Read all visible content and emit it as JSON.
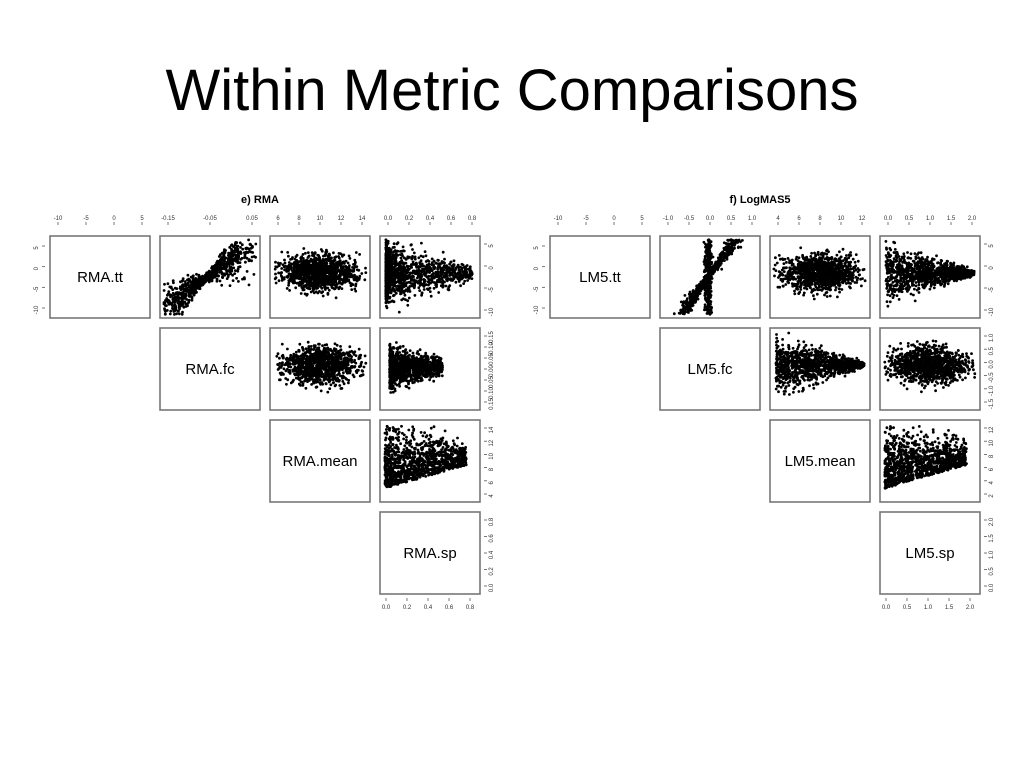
{
  "slide": {
    "title": "Within Metric Comparisons"
  },
  "chart_data": [
    {
      "type": "scatter",
      "title": "e) RMA",
      "variables": [
        "RMA.tt",
        "RMA.fc",
        "RMA.mean",
        "RMA.sp"
      ],
      "top_axis_ticks": [
        [
          "-10",
          "-5",
          "0",
          "5"
        ],
        [
          "-0.15",
          "-0.05",
          "0.05"
        ],
        [
          "6",
          "8",
          "10",
          "12",
          "14"
        ],
        [
          "0.0",
          "0.2",
          "0.4",
          "0.6",
          "0.8"
        ]
      ],
      "bottom_axis_ticks": [
        "0.0",
        "0.2",
        "0.4",
        "0.6",
        "0.8"
      ],
      "left_axis_ticks": [
        "5",
        "0",
        "-5",
        "-10"
      ],
      "right_axis_ticks": [
        [
          "5",
          "0",
          "-5",
          "-10"
        ],
        [
          "-0.15",
          "-0.10",
          "-0.05",
          "0.00",
          "0.05",
          "0.10",
          "0.15"
        ],
        [
          "14",
          "12",
          "10",
          "8",
          "6",
          "4"
        ],
        [
          "0.8",
          "0.6",
          "0.4",
          "0.2",
          "0.0"
        ]
      ],
      "pairs": [
        {
          "x": "RMA.fc",
          "y": "RMA.tt",
          "shape": "bowtie"
        },
        {
          "x": "RMA.mean",
          "y": "RMA.tt",
          "shape": "horizontal-blob"
        },
        {
          "x": "RMA.sp",
          "y": "RMA.tt",
          "shape": "left-fan"
        },
        {
          "x": "RMA.mean",
          "y": "RMA.fc",
          "shape": "horizontal-blob"
        },
        {
          "x": "RMA.sp",
          "y": "RMA.fc",
          "shape": "left-blob"
        },
        {
          "x": "RMA.sp",
          "y": "RMA.mean",
          "shape": "decay"
        }
      ]
    },
    {
      "type": "scatter",
      "title": "f) LogMAS5",
      "variables": [
        "LM5.tt",
        "LM5.fc",
        "LM5.mean",
        "LM5.sp"
      ],
      "top_axis_ticks": [
        [
          "-10",
          "-5",
          "0",
          "5"
        ],
        [
          "-1.0",
          "-0.5",
          "0.0",
          "0.5",
          "1.0"
        ],
        [
          "4",
          "6",
          "8",
          "10",
          "12"
        ],
        [
          "0.0",
          "0.5",
          "1.0",
          "1.5",
          "2.0"
        ]
      ],
      "bottom_axis_ticks": [
        "0.0",
        "0.5",
        "1.0",
        "1.5",
        "2.0"
      ],
      "left_axis_ticks": [
        "5",
        "0",
        "-5",
        "-10"
      ],
      "right_axis_ticks": [
        [
          "5",
          "0",
          "-5",
          "-10"
        ],
        [
          "1.0",
          "0.5",
          "0.0",
          "-0.5",
          "-1.0",
          "-1.5"
        ],
        [
          "12",
          "10",
          "8",
          "6",
          "4",
          "2"
        ],
        [
          "2.0",
          "1.5",
          "1.0",
          "0.5",
          "0.0"
        ]
      ],
      "pairs": [
        {
          "x": "LM5.fc",
          "y": "LM5.tt",
          "shape": "bowtie-sharp"
        },
        {
          "x": "LM5.mean",
          "y": "LM5.tt",
          "shape": "horizontal-blob"
        },
        {
          "x": "LM5.sp",
          "y": "LM5.tt",
          "shape": "horizontal-funnel"
        },
        {
          "x": "LM5.mean",
          "y": "LM5.fc",
          "shape": "horizontal-funnel"
        },
        {
          "x": "LM5.sp",
          "y": "LM5.fc",
          "shape": "horizontal-blob"
        },
        {
          "x": "LM5.sp",
          "y": "LM5.mean",
          "shape": "decay"
        }
      ]
    }
  ]
}
